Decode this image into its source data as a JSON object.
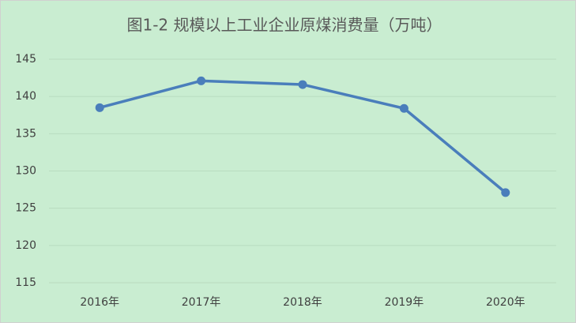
{
  "chart_data": {
    "type": "line",
    "title": "图1-2  规模以上工业企业原煤消费量（万吨）",
    "categories": [
      "2016年",
      "2017年",
      "2018年",
      "2019年",
      "2020年"
    ],
    "series": [
      {
        "name": "原煤消费量",
        "color": "#4a7ebb",
        "values": [
          138.5,
          142.1,
          141.6,
          138.4,
          127.1
        ]
      }
    ],
    "ylim": [
      115,
      145
    ],
    "yticks": [
      115,
      120,
      125,
      130,
      135,
      140,
      145
    ],
    "grid": true
  }
}
